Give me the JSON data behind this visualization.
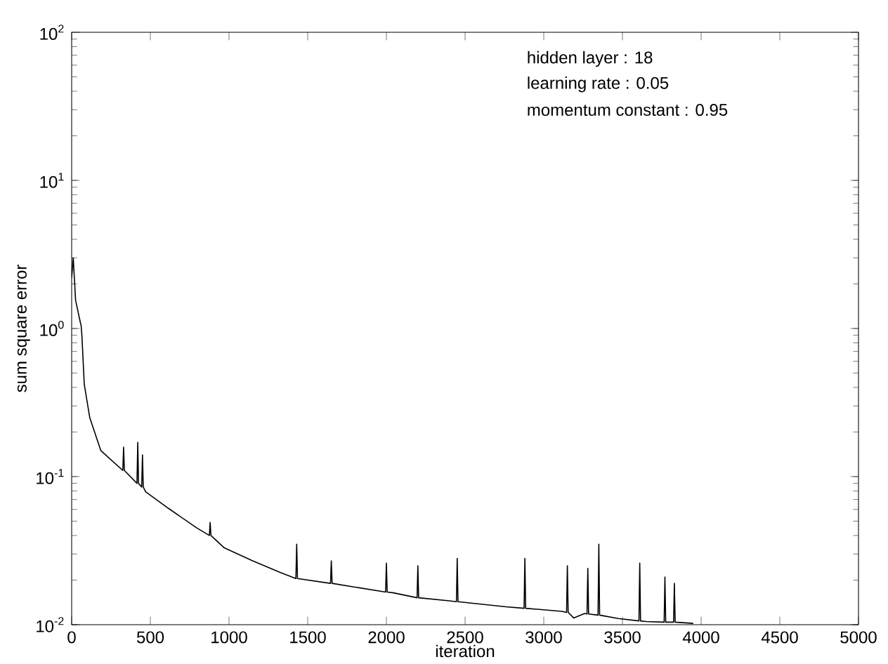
{
  "chart_data": {
    "type": "line",
    "xlabel": "iteration",
    "ylabel": "sum square error",
    "annotations": [
      "hidden layer : 18",
      "learning rate : 0.05",
      "momentum constant : 0.95"
    ],
    "log": "y",
    "grid": false,
    "marker": "none",
    "line_style": "solid",
    "xlim": [
      0,
      5000
    ],
    "xticks": [
      0,
      500,
      1000,
      1500,
      2000,
      2500,
      3000,
      3500,
      4000,
      4500,
      5000
    ],
    "ylim": [
      0.01,
      100
    ],
    "yticks": [
      {
        "value": 0.01,
        "label": "10$^{-2}$"
      },
      {
        "value": 0.1,
        "label": "10$^{-1}$"
      },
      {
        "value": 1,
        "label": "10$^{0}$"
      },
      {
        "value": 10,
        "label": "10$^{1}$"
      },
      {
        "value": 100,
        "label": "10$^{2}$"
      }
    ],
    "series": [
      {
        "color": "#000000",
        "x": [
          0,
          10,
          25,
          55,
          60,
          65,
          80,
          115,
          185,
          325,
          330,
          335,
          415,
          420,
          425,
          445,
          450,
          455,
          470,
          615,
          795,
          875,
          880,
          885,
          970,
          1150,
          1330,
          1425,
          1430,
          1435,
          1645,
          1650,
          1655,
          1995,
          2000,
          2005,
          2045,
          2195,
          2200,
          2205,
          2400,
          2445,
          2450,
          2455,
          2760,
          2875,
          2880,
          2885,
          3115,
          3145,
          3150,
          3155,
          3190,
          3260,
          3275,
          3280,
          3285,
          3345,
          3350,
          3355,
          3475,
          3605,
          3610,
          3615,
          3650,
          3765,
          3770,
          3775,
          3825,
          3830,
          3835,
          3950
        ],
        "values": [
          2.2,
          3,
          1.55,
          1.1,
          1.05,
          0.9,
          0.42,
          0.25,
          0.15,
          0.11,
          0.158,
          0.11,
          0.09,
          0.17,
          0.09,
          0.085,
          0.14,
          0.085,
          0.079,
          0.061,
          0.045,
          0.04,
          0.049,
          0.04,
          0.033,
          0.027,
          0.0224,
          0.0205,
          0.035,
          0.0205,
          0.019,
          0.027,
          0.019,
          0.0166,
          0.026,
          0.0166,
          0.0164,
          0.0152,
          0.025,
          0.0152,
          0.0145,
          0.0143,
          0.028,
          0.0143,
          0.0132,
          0.0129,
          0.028,
          0.0129,
          0.0123,
          0.0121,
          0.025,
          0.0121,
          0.0111,
          0.0119,
          0.0118,
          0.024,
          0.0118,
          0.0116,
          0.035,
          0.0116,
          0.011,
          0.0106,
          0.026,
          0.0106,
          0.0105,
          0.0104,
          0.021,
          0.0104,
          0.0104,
          0.019,
          0.0104,
          0.0102
        ]
      }
    ]
  }
}
